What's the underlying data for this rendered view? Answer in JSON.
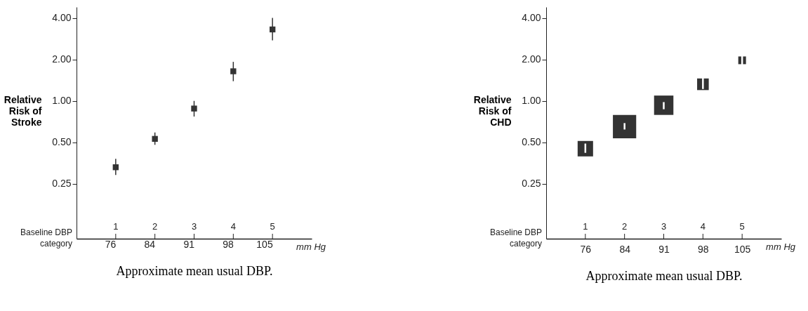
{
  "chart_data": [
    {
      "type": "scatter",
      "xlabel": "Approximate mean usual DBP.",
      "ylabel": "Relative Risk of Stroke",
      "categories": [
        "76",
        "84",
        "91",
        "98",
        "105"
      ],
      "series": [
        {
          "color": "#333333",
          "values": [
            0.33,
            0.53,
            0.88,
            1.64,
            3.3
          ],
          "errors": [
            [
              0.29,
              0.38
            ],
            [
              0.48,
              0.59
            ],
            [
              0.77,
              1.0
            ],
            [
              1.39,
              1.92
            ],
            [
              2.75,
              4.0
            ]
          ]
        }
      ],
      "marker": "square",
      "log": "y",
      "ylim": [
        0.1,
        4.8
      ],
      "yticks": [
        0.25,
        {
          "value": 0.5,
          "label": "0.50"
        },
        {
          "value": 1,
          "label": "1.00"
        },
        {
          "value": 2,
          "label": "2.00"
        },
        {
          "value": 4,
          "label": "4.00"
        }
      ],
      "grid": false,
      "annotations": [
        "Baseline DBP category",
        "1",
        "2",
        "3",
        "4",
        "5",
        "mm Hg"
      ]
    },
    {
      "type": "bubble",
      "xlabel": "Approximate mean usual DBP.",
      "ylabel": "Relative Risk of CHD",
      "categories": [
        "76",
        "84",
        "91",
        "98",
        "105"
      ],
      "series": [
        {
          "color": "#333333",
          "values": [
            0.45,
            0.65,
            0.93,
            1.32,
            1.97
          ],
          "sizes": [
            0.44,
            1,
            0.69,
            0.25,
            0.11
          ],
          "errors": [
            [
              0.42,
              0.49
            ],
            [
              0.62,
              0.69
            ],
            [
              0.87,
              0.98
            ],
            [
              1.22,
              1.5
            ],
            [
              1.8,
              2.12
            ]
          ]
        }
      ],
      "marker": "square",
      "log": "y",
      "ylim": [
        0.1,
        4.8
      ],
      "yticks": [
        0.25,
        {
          "value": 0.5,
          "label": "0.50"
        },
        {
          "value": 1,
          "label": "1.00"
        },
        {
          "value": 2,
          "label": "2.00"
        },
        {
          "value": 4,
          "label": "4.00"
        }
      ],
      "grid": false,
      "annotations": [
        "Baseline DBP category",
        "1",
        "2",
        "3",
        "4",
        "5",
        "mm Hg"
      ]
    }
  ]
}
